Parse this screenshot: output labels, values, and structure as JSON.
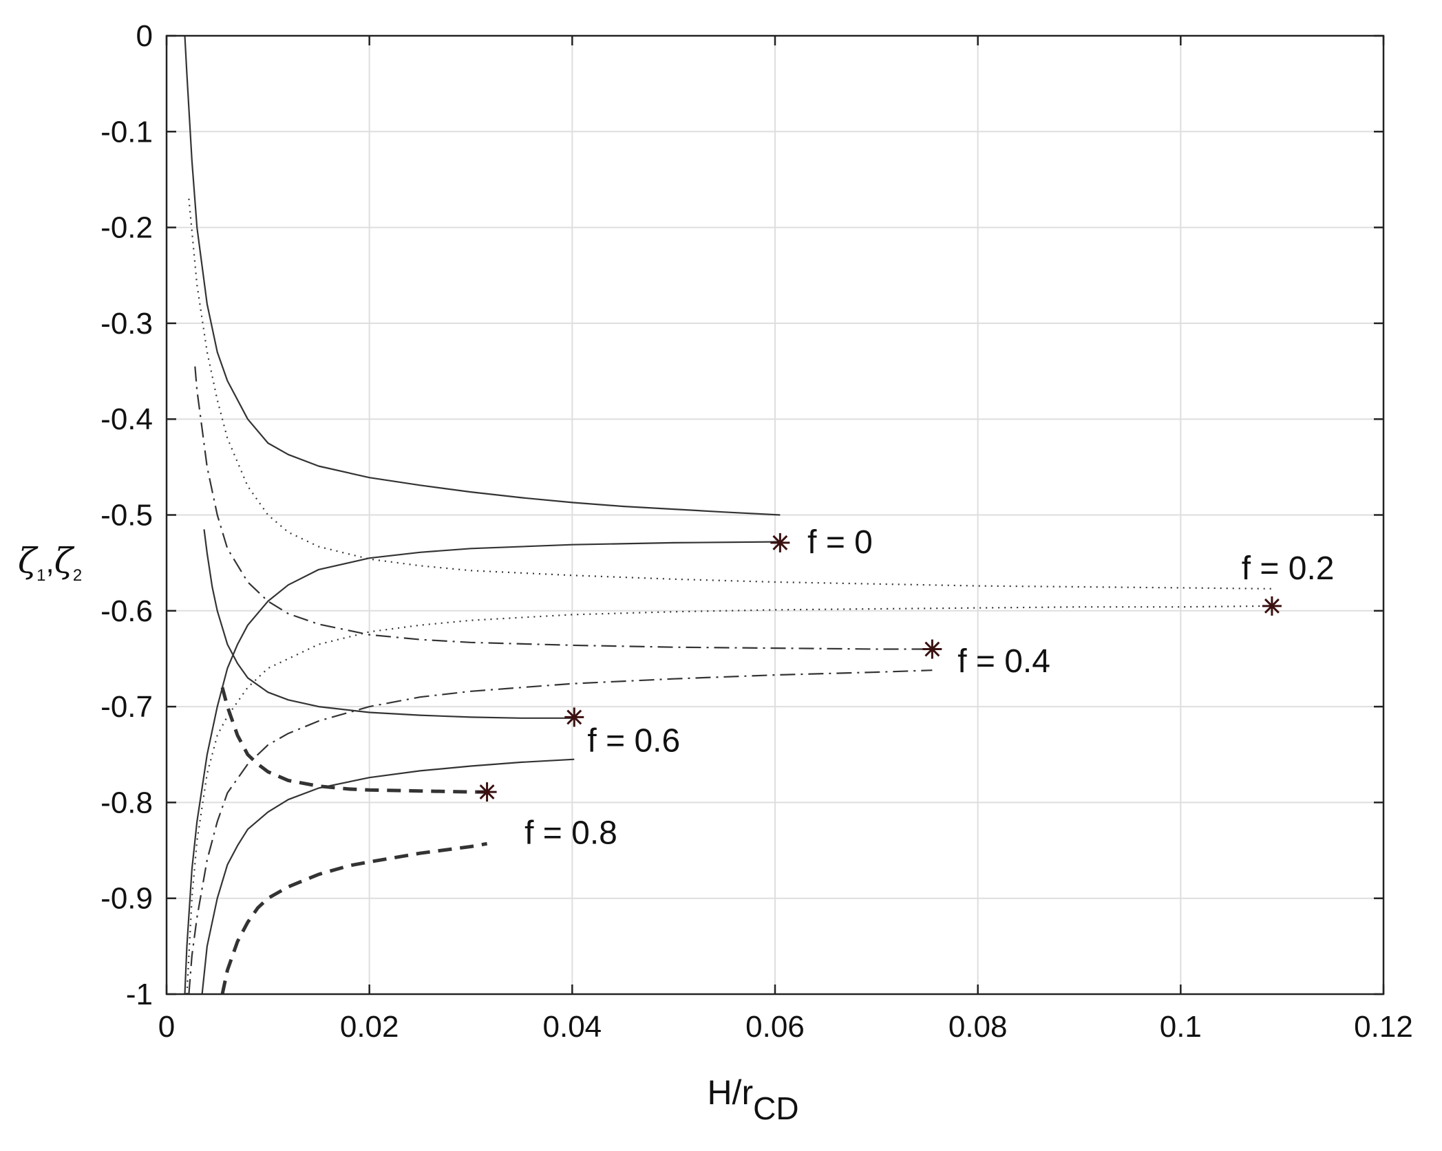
{
  "chart_data": {
    "type": "line",
    "xlabel": "H/r",
    "xlabel_sub": "CD",
    "ylabel_parts": [
      "ζ",
      "1",
      ",",
      "ζ",
      "2"
    ],
    "xlim": [
      0,
      0.12
    ],
    "ylim": [
      -1,
      0
    ],
    "xticks": [
      0,
      0.02,
      0.04,
      0.06,
      0.08,
      0.1,
      0.12
    ],
    "xtick_labels": [
      "0",
      "0.02",
      "0.04",
      "0.06",
      "0.08",
      "0.1",
      "0.12"
    ],
    "yticks": [
      0,
      -0.1,
      -0.2,
      -0.3,
      -0.4,
      -0.5,
      -0.6,
      -0.7,
      -0.8,
      -0.9,
      -1
    ],
    "ytick_labels": [
      "0",
      "-0.1",
      "-0.2",
      "-0.3",
      "-0.4",
      "-0.5",
      "-0.6",
      "-0.7",
      "-0.8",
      "-0.9",
      "-1"
    ],
    "grid": true,
    "line_color": "#333333",
    "marker_color": "#3a1010",
    "series": [
      {
        "style": "solid",
        "x": [
          0.0018,
          0.002,
          0.0025,
          0.003,
          0.004,
          0.005,
          0.006,
          0.008,
          0.01,
          0.012,
          0.015,
          0.02,
          0.025,
          0.03,
          0.035,
          0.04,
          0.045,
          0.05,
          0.055,
          0.0605
        ],
        "y": [
          0.0,
          -0.04,
          -0.13,
          -0.2,
          -0.28,
          -0.33,
          -0.36,
          -0.4,
          -0.425,
          -0.437,
          -0.449,
          -0.461,
          -0.469,
          -0.476,
          -0.482,
          -0.487,
          -0.491,
          -0.494,
          -0.497,
          -0.5
        ]
      },
      {
        "style": "solid",
        "x": [
          0.0018,
          0.002,
          0.0025,
          0.003,
          0.004,
          0.005,
          0.006,
          0.007,
          0.008,
          0.01,
          0.012,
          0.015,
          0.02,
          0.025,
          0.03,
          0.04,
          0.05,
          0.0605
        ],
        "y": [
          -1.0,
          -0.95,
          -0.87,
          -0.82,
          -0.75,
          -0.7,
          -0.66,
          -0.635,
          -0.615,
          -0.59,
          -0.573,
          -0.557,
          -0.545,
          -0.539,
          -0.535,
          -0.531,
          -0.529,
          -0.528
        ]
      },
      {
        "style": "dotted",
        "x": [
          0.0022,
          0.003,
          0.004,
          0.005,
          0.006,
          0.008,
          0.01,
          0.012,
          0.015,
          0.02,
          0.025,
          0.03,
          0.04,
          0.05,
          0.06,
          0.07,
          0.08,
          0.09,
          0.1,
          0.109
        ],
        "y": [
          -0.17,
          -0.26,
          -0.33,
          -0.38,
          -0.42,
          -0.47,
          -0.5,
          -0.518,
          -0.533,
          -0.546,
          -0.553,
          -0.558,
          -0.563,
          -0.567,
          -0.57,
          -0.572,
          -0.574,
          -0.575,
          -0.576,
          -0.577
        ]
      },
      {
        "style": "dotted",
        "x": [
          0.002,
          0.0025,
          0.003,
          0.004,
          0.005,
          0.006,
          0.008,
          0.01,
          0.012,
          0.015,
          0.02,
          0.025,
          0.03,
          0.04,
          0.05,
          0.06,
          0.07,
          0.08,
          0.09,
          0.1,
          0.109
        ],
        "y": [
          -1.0,
          -0.9,
          -0.84,
          -0.77,
          -0.73,
          -0.71,
          -0.68,
          -0.66,
          -0.65,
          -0.635,
          -0.622,
          -0.615,
          -0.61,
          -0.604,
          -0.601,
          -0.599,
          -0.598,
          -0.597,
          -0.596,
          -0.596,
          -0.595
        ]
      },
      {
        "style": "dashdot",
        "x": [
          0.0028,
          0.003,
          0.0035,
          0.004,
          0.005,
          0.006,
          0.008,
          0.01,
          0.012,
          0.015,
          0.02,
          0.025,
          0.03,
          0.04,
          0.05,
          0.06,
          0.07,
          0.0755
        ],
        "y": [
          -0.345,
          -0.37,
          -0.41,
          -0.45,
          -0.5,
          -0.535,
          -0.57,
          -0.59,
          -0.603,
          -0.614,
          -0.625,
          -0.63,
          -0.633,
          -0.636,
          -0.638,
          -0.639,
          -0.64,
          -0.64
        ]
      },
      {
        "style": "dashdot",
        "x": [
          0.0022,
          0.0025,
          0.003,
          0.004,
          0.005,
          0.006,
          0.008,
          0.01,
          0.012,
          0.015,
          0.02,
          0.025,
          0.03,
          0.04,
          0.05,
          0.06,
          0.07,
          0.0755
        ],
        "y": [
          -1.0,
          -0.96,
          -0.92,
          -0.86,
          -0.82,
          -0.79,
          -0.76,
          -0.74,
          -0.728,
          -0.715,
          -0.7,
          -0.69,
          -0.684,
          -0.676,
          -0.671,
          -0.667,
          -0.664,
          -0.662
        ]
      },
      {
        "style": "solid",
        "x": [
          0.0037,
          0.004,
          0.0045,
          0.005,
          0.006,
          0.007,
          0.008,
          0.01,
          0.012,
          0.015,
          0.02,
          0.025,
          0.03,
          0.035,
          0.0402
        ],
        "y": [
          -0.515,
          -0.54,
          -0.575,
          -0.6,
          -0.635,
          -0.655,
          -0.67,
          -0.685,
          -0.693,
          -0.7,
          -0.706,
          -0.709,
          -0.711,
          -0.712,
          -0.712
        ]
      },
      {
        "style": "solid",
        "x": [
          0.0035,
          0.004,
          0.005,
          0.006,
          0.007,
          0.008,
          0.01,
          0.012,
          0.015,
          0.02,
          0.025,
          0.03,
          0.035,
          0.0402
        ],
        "y": [
          -1.0,
          -0.95,
          -0.9,
          -0.865,
          -0.845,
          -0.828,
          -0.81,
          -0.797,
          -0.785,
          -0.774,
          -0.767,
          -0.762,
          -0.758,
          -0.755
        ]
      },
      {
        "style": "dashed",
        "x": [
          0.0055,
          0.006,
          0.007,
          0.008,
          0.009,
          0.01,
          0.012,
          0.015,
          0.018,
          0.02,
          0.025,
          0.03,
          0.0316
        ],
        "y": [
          -0.68,
          -0.7,
          -0.73,
          -0.75,
          -0.76,
          -0.768,
          -0.777,
          -0.783,
          -0.786,
          -0.787,
          -0.788,
          -0.789,
          -0.789
        ]
      },
      {
        "style": "dashed",
        "x": [
          0.0055,
          0.006,
          0.007,
          0.008,
          0.009,
          0.01,
          0.012,
          0.015,
          0.018,
          0.02,
          0.025,
          0.03,
          0.0316
        ],
        "y": [
          -1.0,
          -0.975,
          -0.945,
          -0.925,
          -0.91,
          -0.9,
          -0.888,
          -0.875,
          -0.866,
          -0.862,
          -0.853,
          -0.846,
          -0.843
        ]
      }
    ],
    "markers": [
      {
        "x": 0.0605,
        "y": -0.529
      },
      {
        "x": 0.109,
        "y": -0.595
      },
      {
        "x": 0.0755,
        "y": -0.64
      },
      {
        "x": 0.0402,
        "y": -0.711
      },
      {
        "x": 0.0316,
        "y": -0.789
      }
    ],
    "annotations": [
      {
        "text": "f = 0",
        "x": 0.0632,
        "y": -0.54
      },
      {
        "text": "f = 0.2",
        "x": 0.106,
        "y": -0.567
      },
      {
        "text": "f = 0.4",
        "x": 0.078,
        "y": -0.664
      },
      {
        "text": "f = 0.6",
        "x": 0.0415,
        "y": -0.747
      },
      {
        "text": "f = 0.8",
        "x": 0.0353,
        "y": -0.843
      }
    ]
  }
}
